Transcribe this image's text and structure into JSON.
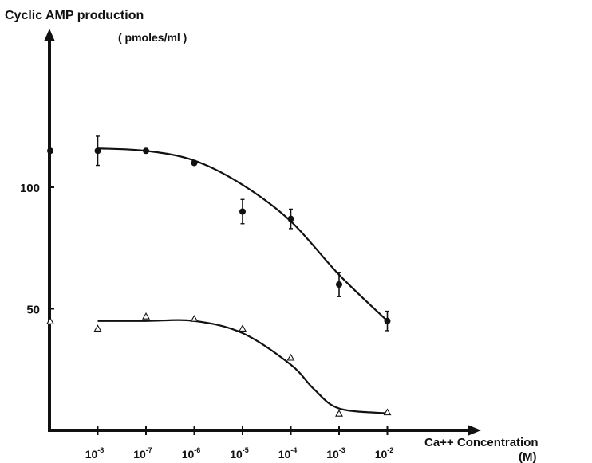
{
  "chart_data": {
    "type": "scatter",
    "title": "",
    "ylabel": "Cyclic AMP production",
    "ylabel_unit": "( pmoles/ml )",
    "xlabel": "Ca++ Concentration",
    "xlabel_unit": "(M)",
    "x_scale": "log",
    "xlim": [
      1e-09,
      0.01
    ],
    "ylim": [
      0,
      150
    ],
    "y_ticks": [
      50,
      100
    ],
    "x_ticks": [
      {
        "value": 1e-08,
        "base": "10",
        "exp": "-8"
      },
      {
        "value": 1e-07,
        "base": "10",
        "exp": "-7"
      },
      {
        "value": 1e-06,
        "base": "10",
        "exp": "-6"
      },
      {
        "value": 1e-05,
        "base": "10",
        "exp": "-5"
      },
      {
        "value": 0.0001,
        "base": "10",
        "exp": "-4"
      },
      {
        "value": 0.001,
        "base": "10",
        "exp": "-3"
      },
      {
        "value": 0.01,
        "base": "10",
        "exp": "-2"
      }
    ],
    "grid": false,
    "legend": "none",
    "series": [
      {
        "marker": "filled-circle",
        "color": "#111111",
        "control_value": 115,
        "points": [
          {
            "x": 1e-08,
            "y": 115,
            "err": 6
          },
          {
            "x": 1e-07,
            "y": 115
          },
          {
            "x": 1e-06,
            "y": 110
          },
          {
            "x": 1e-05,
            "y": 90,
            "err": 5
          },
          {
            "x": 0.0001,
            "y": 87,
            "err": 4
          },
          {
            "x": 0.001,
            "y": 60,
            "err": 5
          },
          {
            "x": 0.01,
            "y": 45,
            "err": 4
          }
        ],
        "curve": [
          {
            "x": 1e-08,
            "y": 116
          },
          {
            "x": 1e-07,
            "y": 115
          },
          {
            "x": 1e-06,
            "y": 111
          },
          {
            "x": 1e-05,
            "y": 101
          },
          {
            "x": 0.0001,
            "y": 86
          },
          {
            "x": 0.001,
            "y": 64
          },
          {
            "x": 0.01,
            "y": 45
          }
        ]
      },
      {
        "marker": "open-triangle",
        "color": "#111111",
        "control_value": 45,
        "points": [
          {
            "x": 1e-08,
            "y": 42
          },
          {
            "x": 1e-07,
            "y": 47
          },
          {
            "x": 1e-06,
            "y": 46
          },
          {
            "x": 1e-05,
            "y": 42
          },
          {
            "x": 0.0001,
            "y": 30
          },
          {
            "x": 0.001,
            "y": 7
          },
          {
            "x": 0.01,
            "y": 7.5
          }
        ],
        "curve": [
          {
            "x": 1e-08,
            "y": 45
          },
          {
            "x": 1e-07,
            "y": 45
          },
          {
            "x": 1e-06,
            "y": 45
          },
          {
            "x": 1e-05,
            "y": 40
          },
          {
            "x": 0.0001,
            "y": 27
          },
          {
            "x": 0.0003,
            "y": 17
          },
          {
            "x": 0.001,
            "y": 9
          },
          {
            "x": 0.01,
            "y": 7
          }
        ]
      }
    ]
  }
}
